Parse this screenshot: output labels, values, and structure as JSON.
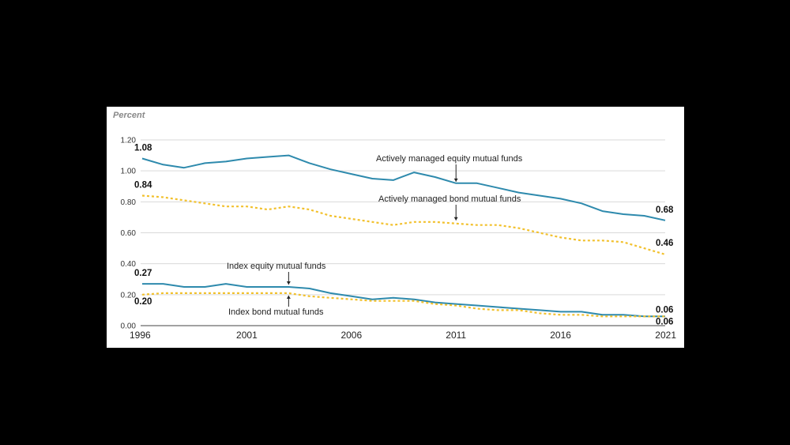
{
  "chart_data": {
    "type": "line",
    "ylabel": "Percent",
    "ylim": [
      0,
      1.2
    ],
    "yticks": [
      "0.00",
      "0.20",
      "0.40",
      "0.60",
      "0.80",
      "1.00",
      "1.20"
    ],
    "x": [
      1996,
      1997,
      1998,
      1999,
      2000,
      2001,
      2002,
      2003,
      2004,
      2005,
      2006,
      2007,
      2008,
      2009,
      2010,
      2011,
      2012,
      2013,
      2014,
      2015,
      2016,
      2017,
      2018,
      2019,
      2020,
      2021
    ],
    "xticks": [
      "1996",
      "2001",
      "2006",
      "2011",
      "2016",
      "2021"
    ],
    "series": [
      {
        "name": "Actively managed equity mutual funds",
        "color": "#2e8aad",
        "style": "solid",
        "values": [
          1.08,
          1.04,
          1.02,
          1.05,
          1.06,
          1.08,
          1.09,
          1.1,
          1.05,
          1.01,
          0.98,
          0.95,
          0.94,
          0.99,
          0.96,
          0.92,
          0.92,
          0.89,
          0.86,
          0.84,
          0.82,
          0.79,
          0.74,
          0.72,
          0.71,
          0.68
        ],
        "start_label": "1.08",
        "end_label": "0.68"
      },
      {
        "name": "Actively managed bond mutual funds",
        "color": "#f2c12e",
        "style": "dotted",
        "values": [
          0.84,
          0.83,
          0.81,
          0.79,
          0.77,
          0.77,
          0.75,
          0.77,
          0.75,
          0.71,
          0.69,
          0.67,
          0.65,
          0.67,
          0.67,
          0.66,
          0.65,
          0.65,
          0.63,
          0.6,
          0.57,
          0.55,
          0.55,
          0.54,
          0.5,
          0.46
        ],
        "start_label": "0.84",
        "end_label": "0.46"
      },
      {
        "name": "Index equity mutual funds",
        "color": "#2e8aad",
        "style": "solid",
        "values": [
          0.27,
          0.27,
          0.25,
          0.25,
          0.27,
          0.25,
          0.25,
          0.25,
          0.24,
          0.21,
          0.19,
          0.17,
          0.18,
          0.17,
          0.15,
          0.14,
          0.13,
          0.12,
          0.11,
          0.1,
          0.09,
          0.09,
          0.07,
          0.07,
          0.06,
          0.06
        ],
        "start_label": "0.27",
        "end_label": "0.06"
      },
      {
        "name": "Index bond mutual funds",
        "color": "#f2c12e",
        "style": "dotted",
        "values": [
          0.2,
          0.21,
          0.21,
          0.21,
          0.21,
          0.21,
          0.21,
          0.21,
          0.19,
          0.18,
          0.17,
          0.16,
          0.16,
          0.16,
          0.14,
          0.13,
          0.11,
          0.1,
          0.1,
          0.08,
          0.07,
          0.07,
          0.06,
          0.06,
          0.06,
          0.06
        ],
        "start_label": "0.20",
        "end_label": "0.06"
      }
    ],
    "annotations": [
      {
        "text": "Actively managed equity mutual funds",
        "series": 0,
        "year": 2011,
        "arrow": "down"
      },
      {
        "text": "Actively managed bond mutual funds",
        "series": 1,
        "year": 2011,
        "arrow": "down"
      },
      {
        "text": "Index equity mutual funds",
        "series": 2,
        "year": 2003,
        "arrow": "down"
      },
      {
        "text": "Index bond mutual funds",
        "series": 3,
        "year": 2003,
        "arrow": "up"
      }
    ]
  }
}
